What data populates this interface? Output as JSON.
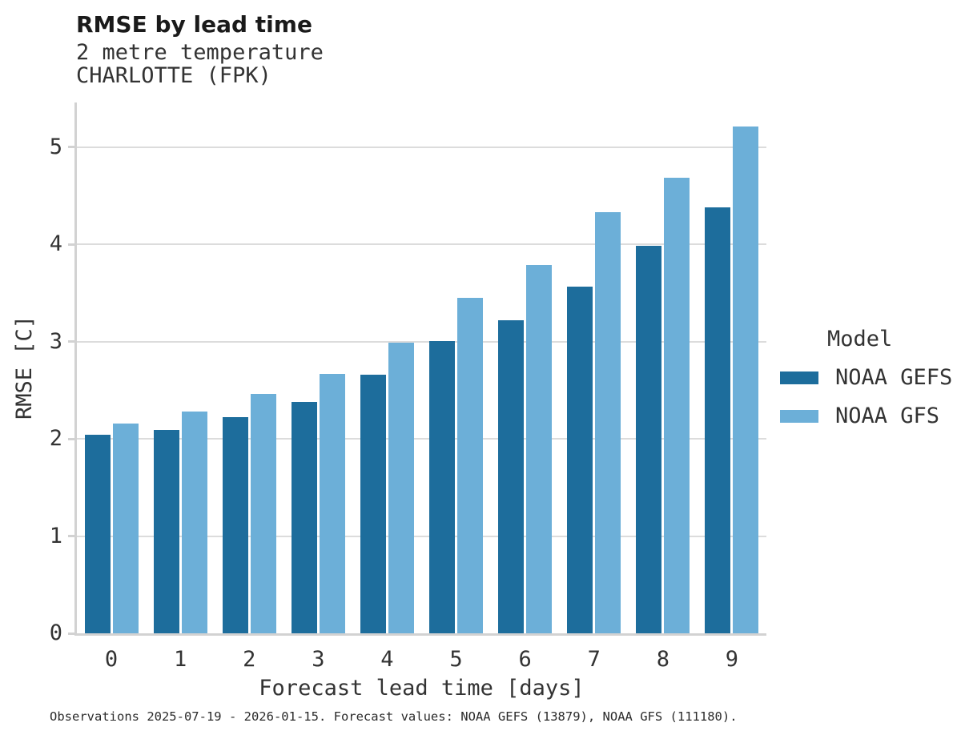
{
  "chart_data": {
    "type": "bar",
    "title": "RMSE by lead time",
    "subtitle": "2 metre temperature",
    "station": "CHARLOTTE (FPK)",
    "categories": [
      "0",
      "1",
      "2",
      "3",
      "4",
      "5",
      "6",
      "7",
      "8",
      "9"
    ],
    "series": [
      {
        "name": "NOAA GEFS",
        "color": "#1d6d9c",
        "values": [
          2.04,
          2.09,
          2.22,
          2.38,
          2.66,
          3.01,
          3.22,
          3.57,
          3.99,
          4.38
        ]
      },
      {
        "name": "NOAA GFS",
        "color": "#6cafd8",
        "values": [
          2.16,
          2.28,
          2.46,
          2.67,
          2.99,
          3.45,
          3.79,
          4.33,
          4.69,
          5.21
        ]
      }
    ],
    "xlabel": "Forecast lead time [days]",
    "ylabel": "RMSE [C]",
    "ylim": [
      0,
      5.46
    ],
    "yticks": [
      0,
      1,
      2,
      3,
      4,
      5
    ],
    "grid": "horizontal",
    "legend_title": "Model",
    "legend_position": "right",
    "footnote": "Observations 2025-07-19 - 2026-01-15. Forecast values: NOAA GEFS (13879), NOAA GFS (111180)."
  }
}
